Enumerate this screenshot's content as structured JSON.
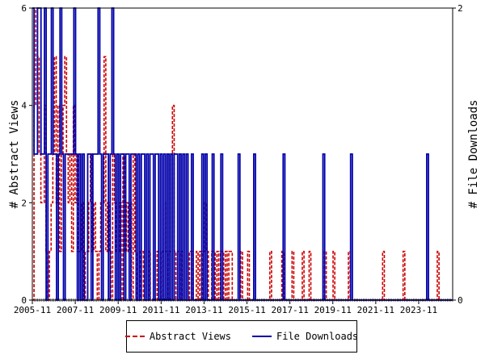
{
  "chart_data": {
    "type": "line",
    "ylabel_left": "# Abstract Views",
    "ylabel_right": "# File Downloads",
    "ylim_left": [
      0,
      6
    ],
    "ylim_right": [
      0,
      2
    ],
    "yticks_left": [
      "0",
      "2",
      "4",
      "6"
    ],
    "yticks_right": [
      "0",
      "2"
    ],
    "x_tick_labels": [
      "2005-11",
      "2007-11",
      "2009-11",
      "2011-11",
      "2013-11",
      "2015-11",
      "2017-11",
      "2019-11",
      "2021-11",
      "2023-11"
    ],
    "x_start": "2005-11",
    "x_end": "2025-06",
    "grid": false,
    "legend_position": "bottom",
    "series": [
      {
        "name": "Abstract Views",
        "axis": "left",
        "color": "#cc0000",
        "style": "dashed",
        "values": [
          0,
          4,
          6,
          5,
          3,
          2,
          2,
          4,
          1,
          0,
          1,
          2,
          3,
          5,
          2,
          4,
          1,
          3,
          4,
          5,
          3,
          2,
          3,
          1,
          4,
          2,
          3,
          1,
          1,
          2,
          0,
          1,
          1,
          2,
          3,
          1,
          2,
          1,
          0,
          1,
          2,
          2,
          5,
          1,
          2,
          1,
          0,
          3,
          2,
          1,
          1,
          2,
          0,
          3,
          1,
          2,
          1,
          2,
          0,
          3,
          1,
          0,
          0,
          1,
          1,
          0,
          0,
          0,
          1,
          0,
          0,
          0,
          0,
          1,
          1,
          0,
          1,
          2,
          1,
          0,
          1,
          3,
          4,
          1,
          0,
          1,
          0,
          1,
          0,
          0,
          0,
          0,
          1,
          1,
          0,
          0,
          1,
          0,
          1,
          0,
          1,
          2,
          1,
          0,
          0,
          1,
          1,
          0,
          1,
          0,
          1,
          1,
          0,
          1,
          0,
          1,
          1,
          0,
          0,
          0,
          0,
          0,
          1,
          0,
          0,
          0,
          1,
          0,
          0,
          0,
          0,
          0,
          0,
          0,
          0,
          0,
          0,
          0,
          0,
          1,
          0,
          0,
          0,
          0,
          0,
          0,
          1,
          0,
          0,
          0,
          0,
          0,
          1,
          0,
          0,
          0,
          0,
          0,
          1,
          0,
          0,
          0,
          1,
          0,
          0,
          0,
          0,
          0,
          0,
          0,
          0,
          1,
          0,
          0,
          0,
          0,
          1,
          0,
          0,
          0,
          0,
          0,
          0,
          0,
          0,
          1,
          0,
          0,
          0,
          0,
          0,
          0,
          0,
          0,
          0,
          0,
          0,
          0,
          0,
          0,
          0,
          0,
          0,
          0,
          0,
          1,
          0,
          0,
          0,
          0,
          0,
          0,
          0,
          0,
          0,
          0,
          0,
          1,
          0,
          0,
          0,
          0,
          0,
          0,
          0,
          0,
          0,
          0,
          0,
          0,
          0,
          0,
          0,
          0,
          0,
          0,
          0,
          1,
          0,
          0,
          0,
          0,
          0,
          0,
          0,
          0
        ]
      },
      {
        "name": "File Downloads",
        "axis": "right",
        "color": "#0000aa",
        "style": "solid",
        "values": [
          2,
          1,
          1,
          2,
          2,
          1,
          1,
          2,
          0,
          1,
          1,
          2,
          1,
          1,
          0,
          1,
          2,
          1,
          0,
          1,
          1,
          1,
          1,
          1,
          2,
          1,
          0,
          1,
          0,
          1,
          0,
          0,
          1,
          1,
          0,
          1,
          1,
          1,
          2,
          1,
          0,
          1,
          1,
          1,
          0,
          1,
          2,
          1,
          0,
          1,
          0,
          1,
          1,
          0,
          1,
          1,
          0,
          1,
          1,
          1,
          0,
          1,
          0,
          1,
          1,
          0,
          1,
          0,
          1,
          1,
          0,
          1,
          1,
          0,
          1,
          0,
          1,
          0,
          1,
          0,
          1,
          0,
          1,
          1,
          0,
          1,
          0,
          1,
          0,
          1,
          0,
          0,
          1,
          0,
          0,
          0,
          0,
          0,
          1,
          0,
          1,
          0,
          0,
          0,
          1,
          0,
          0,
          0,
          0,
          1,
          0,
          0,
          0,
          0,
          0,
          0,
          0,
          0,
          0,
          1,
          0,
          0,
          0,
          0,
          0,
          0,
          0,
          0,
          1,
          0,
          0,
          0,
          0,
          0,
          0,
          0,
          0,
          0,
          0,
          0,
          0,
          0,
          0,
          0,
          0,
          1,
          0,
          0,
          0,
          0,
          0,
          0,
          0,
          0,
          0,
          0,
          0,
          0,
          0,
          0,
          0,
          0,
          0,
          0,
          0,
          0,
          0,
          0,
          1,
          0,
          0,
          0,
          0,
          0,
          0,
          0,
          0,
          0,
          0,
          0,
          0,
          0,
          0,
          0,
          1,
          0,
          0,
          0,
          0,
          0,
          0,
          0,
          0,
          0,
          0,
          0,
          0,
          0,
          0,
          0,
          0,
          0,
          0,
          0,
          0,
          0,
          0,
          0,
          0,
          0,
          0,
          0,
          0,
          0,
          0,
          0,
          0,
          0,
          0,
          0,
          0,
          0,
          0,
          0,
          0,
          0,
          0,
          0,
          1,
          0,
          0,
          0,
          0,
          0,
          0,
          0,
          0,
          0,
          0,
          0,
          0,
          0,
          0
        ]
      }
    ]
  }
}
